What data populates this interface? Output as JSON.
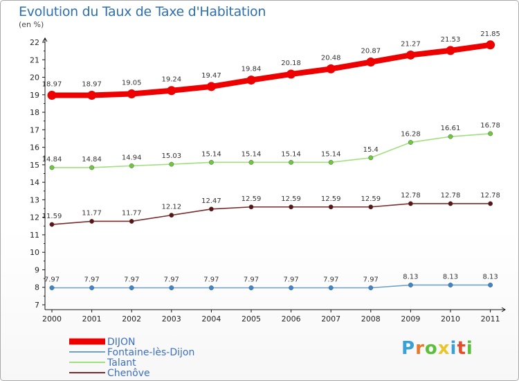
{
  "header": {
    "title": "Evolution du Taux de Taxe d'Habitation",
    "subtitle": "(en %)"
  },
  "logo": {
    "text": "Proxiti",
    "letter_colors": [
      "#3aa0d8",
      "#e8792c",
      "#5bbf3a",
      "#e8c62c",
      "#3aa0d8",
      "#e84a2c",
      "#5bbf3a"
    ]
  },
  "chart_data": {
    "type": "line",
    "title": "Evolution du Taux de Taxe d'Habitation",
    "subtitle": "(en %)",
    "xlabel": "",
    "ylabel": "",
    "x": [
      "2000",
      "2001",
      "2002",
      "2003",
      "2004",
      "2005",
      "2006",
      "2007",
      "2008",
      "2009",
      "2010",
      "2011"
    ],
    "ylim": [
      7,
      22
    ],
    "yticks": [
      7,
      8,
      9,
      10,
      11,
      12,
      13,
      14,
      15,
      16,
      17,
      18,
      19,
      20,
      21,
      22
    ],
    "grid": false,
    "legend_position": "bottom-left",
    "series": [
      {
        "name": "DIJON",
        "color": "#ee0000",
        "marker_color": "#ee0000",
        "emphasis": "thick",
        "values": [
          18.97,
          18.97,
          19.05,
          19.24,
          19.47,
          19.84,
          20.18,
          20.48,
          20.87,
          21.27,
          21.53,
          21.85
        ],
        "labels": [
          "18.97",
          "18.97",
          "19.05",
          "19.24",
          "19.47",
          "19.84",
          "20.18",
          "20.48",
          "20.87",
          "21.27",
          "21.53",
          "21.85"
        ]
      },
      {
        "name": "Fontaine-lès-Dijon",
        "color": "#6ea0c8",
        "marker_color": "#3a86cc",
        "emphasis": "thin",
        "values": [
          7.97,
          7.97,
          7.97,
          7.97,
          7.97,
          7.97,
          7.97,
          7.97,
          7.97,
          8.13,
          8.13,
          8.13
        ],
        "labels": [
          "7.97",
          "7.97",
          "7.97",
          "7.97",
          "7.97",
          "7.97",
          "7.97",
          "7.97",
          "7.97",
          "8.13",
          "8.13",
          "8.13"
        ]
      },
      {
        "name": "Talant",
        "color": "#9ee07e",
        "marker_color": "#6cc93c",
        "emphasis": "thin",
        "values": [
          14.84,
          14.84,
          14.94,
          15.03,
          15.14,
          15.14,
          15.14,
          15.14,
          15.4,
          16.28,
          16.61,
          16.78
        ],
        "labels": [
          "14.84",
          "14.84",
          "14.94",
          "15.03",
          "15.14",
          "15.14",
          "15.14",
          "15.14",
          "15.4",
          "16.28",
          "16.61",
          "16.78"
        ]
      },
      {
        "name": "Chenôve",
        "color": "#7a2a2a",
        "marker_color": "#5a1414",
        "emphasis": "thin",
        "values": [
          11.59,
          11.77,
          11.77,
          12.12,
          12.47,
          12.59,
          12.59,
          12.59,
          12.59,
          12.78,
          12.78,
          12.78
        ],
        "labels": [
          "11.59",
          "11.77",
          "11.77",
          "12.12",
          "12.47",
          "12.59",
          "12.59",
          "12.59",
          "12.59",
          "12.78",
          "12.78",
          "12.78"
        ]
      }
    ]
  }
}
